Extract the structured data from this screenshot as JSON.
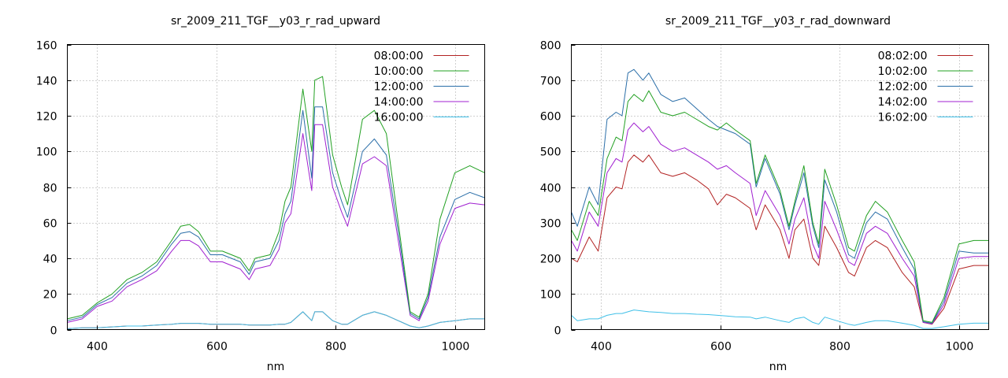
{
  "chart_data": [
    {
      "type": "line",
      "title": "sr_2009_211_TGF__y03_r_rad_upward",
      "xlabel": "nm",
      "ylabel": "",
      "xlim": [
        350,
        1050
      ],
      "ylim": [
        0,
        160
      ],
      "xticks": [
        400,
        600,
        800,
        1000
      ],
      "yticks": [
        0,
        20,
        40,
        60,
        80,
        100,
        120,
        140,
        160
      ],
      "grid": true,
      "legend_position": "top-right",
      "x": [
        350,
        375,
        400,
        425,
        450,
        475,
        500,
        525,
        540,
        555,
        570,
        590,
        610,
        640,
        655,
        665,
        690,
        705,
        715,
        725,
        745,
        760,
        765,
        778,
        795,
        810,
        820,
        845,
        865,
        885,
        905,
        925,
        940,
        955,
        975,
        1000,
        1025,
        1050
      ],
      "series": [
        {
          "name": "08:00:00",
          "color": "#b22222",
          "values": [
            0.5,
            1,
            1,
            1.5,
            2,
            2,
            2.5,
            3,
            3.5,
            3.5,
            3.5,
            3,
            3,
            3,
            2.5,
            2.5,
            2.5,
            3,
            3,
            4,
            10,
            5,
            10,
            10,
            5,
            3,
            3,
            8,
            10,
            8,
            5,
            2,
            1,
            2,
            4,
            5,
            6,
            6
          ]
        },
        {
          "name": "10:00:00",
          "color": "#22a022",
          "values": [
            6,
            8,
            15,
            20,
            28,
            32,
            38,
            50,
            58,
            59,
            55,
            44,
            44,
            40,
            33,
            40,
            42,
            55,
            72,
            80,
            135,
            100,
            140,
            142,
            98,
            80,
            70,
            118,
            123,
            110,
            60,
            10,
            7,
            20,
            62,
            88,
            92,
            88
          ]
        },
        {
          "name": "12:00:00",
          "color": "#2a6ea8",
          "values": [
            5,
            7,
            14,
            18,
            26,
            30,
            36,
            48,
            54,
            55,
            52,
            42,
            42,
            38,
            31,
            38,
            40,
            50,
            65,
            72,
            123,
            85,
            125,
            125,
            88,
            72,
            63,
            100,
            107,
            98,
            55,
            9,
            6,
            18,
            52,
            73,
            77,
            74
          ]
        },
        {
          "name": "14:00:00",
          "color": "#a020d0",
          "values": [
            4,
            6,
            13,
            16,
            24,
            28,
            33,
            44,
            50,
            50,
            47,
            38,
            38,
            34,
            28,
            34,
            36,
            45,
            60,
            65,
            110,
            78,
            115,
            115,
            80,
            66,
            58,
            93,
            97,
            92,
            50,
            8,
            5,
            16,
            48,
            68,
            71,
            70
          ]
        },
        {
          "name": "16:00:00",
          "color": "#40c0e8",
          "values": [
            0.5,
            1,
            1,
            1.5,
            2,
            2,
            2.5,
            3,
            3.5,
            3.5,
            3.5,
            3,
            3,
            3,
            2.5,
            2.5,
            2.5,
            3,
            3,
            4,
            10,
            5,
            10,
            10,
            5,
            3,
            3,
            8,
            10,
            8,
            5,
            2,
            1,
            2,
            4,
            5,
            6,
            6
          ]
        }
      ]
    },
    {
      "type": "line",
      "title": "sr_2009_211_TGF__y03_r_rad_downward",
      "xlabel": "nm",
      "ylabel": "",
      "xlim": [
        350,
        1050
      ],
      "ylim": [
        0,
        800
      ],
      "xticks": [
        400,
        600,
        800,
        1000
      ],
      "yticks": [
        0,
        100,
        200,
        300,
        400,
        500,
        600,
        700,
        800
      ],
      "grid": true,
      "legend_position": "top-right",
      "x": [
        350,
        360,
        380,
        395,
        410,
        425,
        435,
        445,
        455,
        470,
        480,
        500,
        520,
        540,
        560,
        580,
        595,
        610,
        625,
        650,
        660,
        675,
        700,
        715,
        725,
        740,
        755,
        765,
        775,
        795,
        815,
        825,
        845,
        860,
        880,
        905,
        925,
        940,
        955,
        975,
        1000,
        1025,
        1050
      ],
      "series": [
        {
          "name": "08:02:00",
          "color": "#b22222",
          "values": [
            200,
            190,
            260,
            220,
            370,
            400,
            395,
            470,
            490,
            470,
            490,
            440,
            430,
            440,
            420,
            395,
            350,
            380,
            370,
            340,
            280,
            350,
            280,
            200,
            280,
            310,
            200,
            180,
            290,
            230,
            160,
            150,
            230,
            250,
            230,
            160,
            120,
            20,
            15,
            60,
            170,
            180,
            180
          ]
        },
        {
          "name": "10:02:00",
          "color": "#22a022",
          "values": [
            280,
            250,
            360,
            320,
            480,
            540,
            530,
            640,
            660,
            640,
            670,
            610,
            600,
            610,
            590,
            570,
            560,
            580,
            560,
            530,
            410,
            490,
            390,
            290,
            360,
            460,
            300,
            240,
            450,
            350,
            230,
            220,
            320,
            360,
            330,
            250,
            190,
            25,
            20,
            90,
            240,
            250,
            250
          ]
        },
        {
          "name": "12:02:00",
          "color": "#2a6ea8",
          "values": [
            330,
            290,
            400,
            350,
            590,
            610,
            600,
            720,
            730,
            700,
            720,
            660,
            640,
            650,
            620,
            590,
            570,
            560,
            550,
            520,
            400,
            480,
            380,
            280,
            350,
            440,
            290,
            230,
            420,
            330,
            210,
            200,
            300,
            330,
            310,
            230,
            170,
            22,
            18,
            80,
            220,
            215,
            215
          ]
        },
        {
          "name": "14:02:00",
          "color": "#a020d0",
          "values": [
            250,
            220,
            330,
            290,
            440,
            480,
            470,
            560,
            580,
            555,
            570,
            520,
            500,
            510,
            490,
            470,
            450,
            460,
            440,
            410,
            320,
            390,
            320,
            240,
            310,
            370,
            240,
            200,
            360,
            280,
            190,
            180,
            270,
            290,
            270,
            200,
            150,
            20,
            16,
            70,
            200,
            205,
            205
          ]
        },
        {
          "name": "16:02:00",
          "color": "#40c0e8",
          "values": [
            40,
            25,
            30,
            30,
            40,
            45,
            45,
            50,
            55,
            52,
            50,
            48,
            45,
            45,
            43,
            42,
            40,
            38,
            36,
            35,
            30,
            35,
            25,
            20,
            30,
            35,
            20,
            15,
            35,
            25,
            15,
            12,
            20,
            25,
            25,
            18,
            12,
            3,
            3,
            8,
            15,
            18,
            18
          ]
        }
      ]
    }
  ]
}
